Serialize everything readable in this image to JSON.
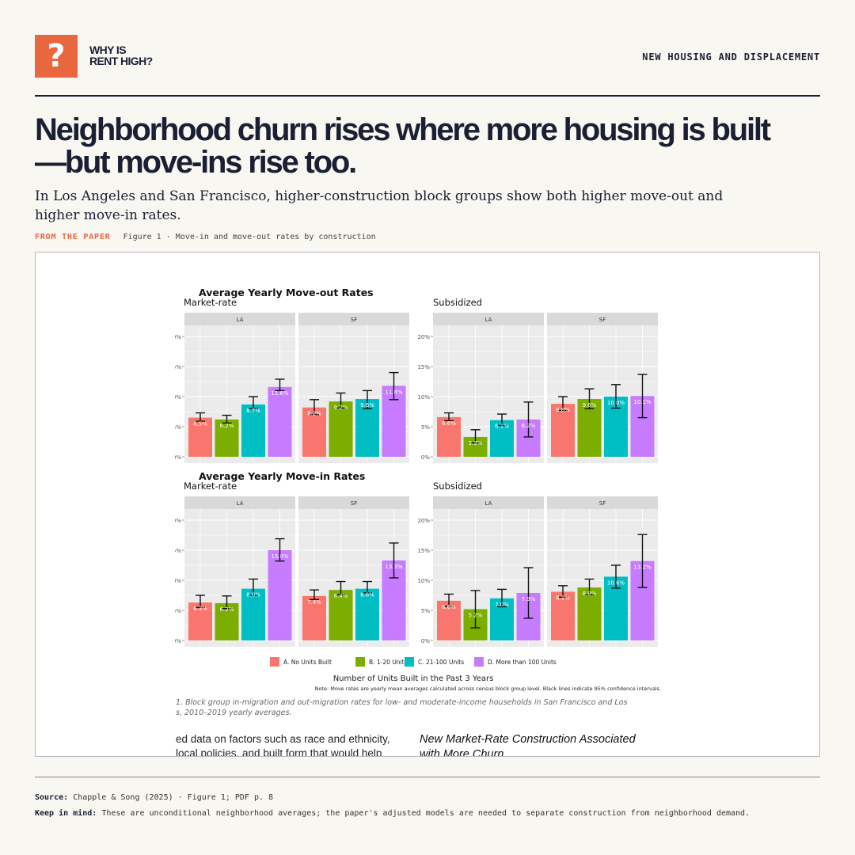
{
  "brand": {
    "icon": "?",
    "line1": "WHY IS",
    "line2": "RENT HIGH?",
    "accent": "#e8673f"
  },
  "section_label": "NEW HOUSING AND DISPLACEMENT",
  "headline": "Neighborhood churn rises where more housing is built—but move-ins rise too.",
  "dek": "In Los Angeles and San Francisco, higher-construction block groups show both higher move-out and higher move-in rates.",
  "figure_tag": "FROM THE PAPER",
  "figure_caption": "Figure 1 · Move-in and move-out rates by construction",
  "chart_data": {
    "type": "bar",
    "categories": [
      "A. No Units Built",
      "B. 1-20 Units",
      "C. 21-100 Units",
      "D. More than 100 Units"
    ],
    "category_colors": [
      "#f8766d",
      "#7cae00",
      "#00bfc4",
      "#c77cff"
    ],
    "xlabel": "Number of Units Built in the Past 3 Years",
    "note": "Note: Move rates are yearly mean averages calculated across census block group level. Black lines indicate 95% confidence intervals.",
    "yticks": [
      "0%",
      "5%",
      "10%",
      "15%",
      "20%"
    ],
    "ylim": [
      0,
      20
    ],
    "grid": true,
    "legend_position": "bottom",
    "figure_note": "1.  Block group in-migration and out-migration rates for low- and moderate-income households in San Francisco and Los\ns, 2010–2019 yearly averages.",
    "body_text_left": [
      "ed data on factors such as race and ethnicity,",
      "local policies, and built form that would help"
    ],
    "body_heading_right": [
      "New Market-Rate Construction Associated",
      "with More Churn"
    ],
    "groups": [
      {
        "title": "Average Yearly Move-out Rates",
        "panels": [
          {
            "subtitle": "Market-rate",
            "facets": [
              {
                "name": "LA",
                "values": [
                  6.5,
                  6.2,
                  8.7,
                  11.6
                ],
                "ci": [
                  [
                    5.9,
                    7.3
                  ],
                  [
                    5.6,
                    6.9
                  ],
                  [
                    8.0,
                    10.0
                  ],
                  [
                    11.0,
                    12.9
                  ]
                ],
                "labels": [
                  "6.5%",
                  "6.2%",
                  "8.7%",
                  "11.6%"
                ]
              },
              {
                "name": "SF",
                "values": [
                  8.2,
                  9.2,
                  9.6,
                  11.8
                ],
                "ci": [
                  [
                    7.0,
                    9.5
                  ],
                  [
                    8.1,
                    10.6
                  ],
                  [
                    8.0,
                    11.0
                  ],
                  [
                    9.5,
                    14.0
                  ]
                ],
                "labels": [
                  "8.2%",
                  "9.2%",
                  "9.6%",
                  "11.8%"
                ]
              }
            ]
          },
          {
            "subtitle": "Subsidized",
            "facets": [
              {
                "name": "LA",
                "values": [
                  6.6,
                  3.3,
                  6.1,
                  6.2
                ],
                "ci": [
                  [
                    6.0,
                    7.3
                  ],
                  [
                    2.3,
                    4.5
                  ],
                  [
                    5.2,
                    7.1
                  ],
                  [
                    3.3,
                    9.1
                  ]
                ],
                "labels": [
                  "6.6%",
                  "3.3%",
                  "6.1%",
                  "6.2%"
                ]
              },
              {
                "name": "SF",
                "values": [
                  8.8,
                  9.6,
                  10.0,
                  10.1
                ],
                "ci": [
                  [
                    7.7,
                    10.0
                  ],
                  [
                    8.0,
                    11.3
                  ],
                  [
                    8.1,
                    12.0
                  ],
                  [
                    6.5,
                    13.7
                  ]
                ],
                "labels": [
                  "8.8%",
                  "9.6%",
                  "10.0%",
                  "10.1%"
                ]
              }
            ]
          }
        ]
      },
      {
        "title": "Average Yearly Move-in Rates",
        "panels": [
          {
            "subtitle": "Market-rate",
            "facets": [
              {
                "name": "LA",
                "values": [
                  6.3,
                  6.2,
                  8.6,
                  15.0
                ],
                "ci": [
                  [
                    5.5,
                    7.5
                  ],
                  [
                    5.3,
                    7.4
                  ],
                  [
                    7.5,
                    10.2
                  ],
                  [
                    13.2,
                    16.9
                  ]
                ],
                "labels": [
                  "6.3%",
                  "6.2%",
                  "8.6%",
                  "15.0%"
                ]
              },
              {
                "name": "SF",
                "values": [
                  7.4,
                  8.4,
                  8.6,
                  13.3
                ],
                "ci": [
                  [
                    6.8,
                    8.4
                  ],
                  [
                    7.6,
                    9.8
                  ],
                  [
                    7.9,
                    9.8
                  ],
                  [
                    10.4,
                    16.2
                  ]
                ],
                "labels": [
                  "7.4%",
                  "8.4%",
                  "8.6%",
                  "13.3%"
                ]
              }
            ]
          },
          {
            "subtitle": "Subsidized",
            "facets": [
              {
                "name": "LA",
                "values": [
                  6.6,
                  5.2,
                  7.0,
                  7.9
                ],
                "ci": [
                  [
                    5.7,
                    7.7
                  ],
                  [
                    2.1,
                    8.3
                  ],
                  [
                    5.6,
                    8.5
                  ],
                  [
                    3.7,
                    12.1
                  ]
                ],
                "labels": [
                  "6.6%",
                  "5.2%",
                  "7.0%",
                  "7.9%"
                ]
              },
              {
                "name": "SF",
                "values": [
                  8.1,
                  8.8,
                  10.6,
                  13.2
                ],
                "ci": [
                  [
                    7.2,
                    9.1
                  ],
                  [
                    7.6,
                    10.2
                  ],
                  [
                    8.7,
                    12.5
                  ],
                  [
                    8.8,
                    17.6
                  ]
                ],
                "labels": [
                  "8.1%",
                  "8.8%",
                  "10.6%",
                  "13.2%"
                ]
              }
            ]
          }
        ]
      }
    ]
  },
  "source_label": "Source:",
  "source_text": "Chapple & Song (2025) · Figure 1; PDF p. 8",
  "keep_label": "Keep in mind:",
  "keep_text": "These are unconditional neighborhood averages; the paper's adjusted models are needed to separate construction from neighborhood demand."
}
